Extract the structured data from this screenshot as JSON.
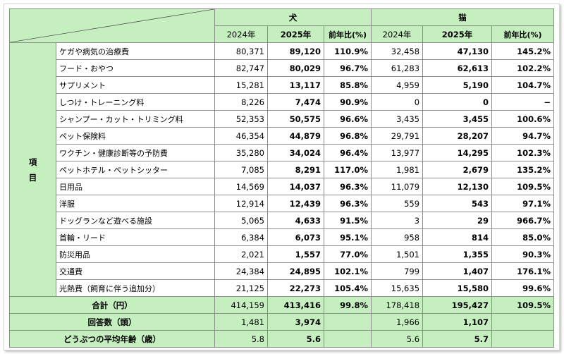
{
  "header": {
    "dog": "犬",
    "cat": "猫",
    "year_2024": "2024年",
    "year_2025": "2025年",
    "yoy": "前年比(%)"
  },
  "side_label": [
    "項",
    "目"
  ],
  "rows": [
    {
      "item": "ケガや病気の治療費",
      "d24": "80,371",
      "d25": "89,120",
      "dr": "110.9%",
      "c24": "32,458",
      "c25": "47,130",
      "cr": "145.2%"
    },
    {
      "item": "フード・おやつ",
      "d24": "82,747",
      "d25": "80,029",
      "dr": "96.7%",
      "c24": "61,283",
      "c25": "62,613",
      "cr": "102.2%"
    },
    {
      "item": "サプリメント",
      "d24": "15,281",
      "d25": "13,117",
      "dr": "85.8%",
      "c24": "4,959",
      "c25": "5,190",
      "cr": "104.7%"
    },
    {
      "item": "しつけ・トレーニング料",
      "d24": "8,226",
      "d25": "7,474",
      "dr": "90.9%",
      "c24": "0",
      "c25": "0",
      "cr": "−"
    },
    {
      "item": "シャンプー・カット・トリミング料",
      "d24": "52,353",
      "d25": "50,575",
      "dr": "96.6%",
      "c24": "3,435",
      "c25": "3,455",
      "cr": "100.6%"
    },
    {
      "item": "ペット保険料",
      "d24": "46,354",
      "d25": "44,879",
      "dr": "96.8%",
      "c24": "29,791",
      "c25": "28,207",
      "cr": "94.7%"
    },
    {
      "item": "ワクチン・健康診断等の予防費",
      "d24": "35,280",
      "d25": "34,024",
      "dr": "96.4%",
      "c24": "13,977",
      "c25": "14,295",
      "cr": "102.3%"
    },
    {
      "item": "ペットホテル・ペットシッター",
      "d24": "7,085",
      "d25": "8,291",
      "dr": "117.0%",
      "c24": "1,981",
      "c25": "2,679",
      "cr": "135.2%"
    },
    {
      "item": "日用品",
      "d24": "14,569",
      "d25": "14,037",
      "dr": "96.3%",
      "c24": "11,079",
      "c25": "12,130",
      "cr": "109.5%"
    },
    {
      "item": "洋服",
      "d24": "12,914",
      "d25": "12,439",
      "dr": "96.3%",
      "c24": "559",
      "c25": "543",
      "cr": "97.1%"
    },
    {
      "item": "ドッグランなど遊べる施設",
      "d24": "5,065",
      "d25": "4,633",
      "dr": "91.5%",
      "c24": "3",
      "c25": "29",
      "cr": "966.7%"
    },
    {
      "item": "首輪・リード",
      "d24": "6,384",
      "d25": "6,073",
      "dr": "95.1%",
      "c24": "958",
      "c25": "814",
      "cr": "85.0%"
    },
    {
      "item": "防災用品",
      "d24": "2,021",
      "d25": "1,557",
      "dr": "77.0%",
      "c24": "1,501",
      "c25": "1,355",
      "cr": "90.3%"
    },
    {
      "item": "交通費",
      "d24": "24,384",
      "d25": "24,895",
      "dr": "102.1%",
      "c24": "799",
      "c25": "1,407",
      "cr": "176.1%"
    },
    {
      "item": "光熱費（飼育に伴う追加分）",
      "d24": "21,125",
      "d25": "22,273",
      "dr": "105.4%",
      "c24": "15,635",
      "c25": "15,580",
      "cr": "99.6%"
    }
  ],
  "total": {
    "label": "合計（円）",
    "d24": "414,159",
    "d25": "413,416",
    "dr": "99.8%",
    "c24": "178,418",
    "c25": "195,427",
    "cr": "109.5%"
  },
  "respondents": {
    "label": "回答数（頭）",
    "d24": "1,481",
    "d25": "3,974",
    "c24": "1,966",
    "c25": "1,107"
  },
  "avg_age": {
    "label": "どうぶつの平均年齢（歳）",
    "d24": "5.8",
    "d25": "5.6",
    "c24": "5.6",
    "c25": "5.7"
  },
  "colors": {
    "header_bg": "#c6efc0",
    "border": "#8c8c8c"
  }
}
